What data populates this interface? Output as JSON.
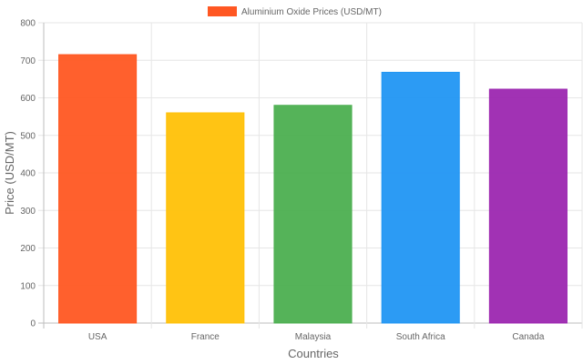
{
  "chart_data": {
    "type": "bar",
    "categories": [
      "USA",
      "France",
      "Malaysia",
      "South Africa",
      "Canada"
    ],
    "series": [
      {
        "name": "Aluminium Oxide Prices (USD/MT)",
        "values": [
          715,
          560,
          580,
          668,
          623
        ],
        "colors": [
          "#FF5722",
          "#FFC107",
          "#4CAF50",
          "#2196F3",
          "#9C27B0"
        ]
      }
    ],
    "xlabel": "Countries",
    "ylabel": "Price (USD/MT)",
    "ylim": [
      0,
      800
    ],
    "yticks": [
      0,
      100,
      200,
      300,
      400,
      500,
      600,
      700,
      800
    ],
    "grid": true,
    "legend_position": "top-center",
    "legend_color": "#FF5722"
  }
}
